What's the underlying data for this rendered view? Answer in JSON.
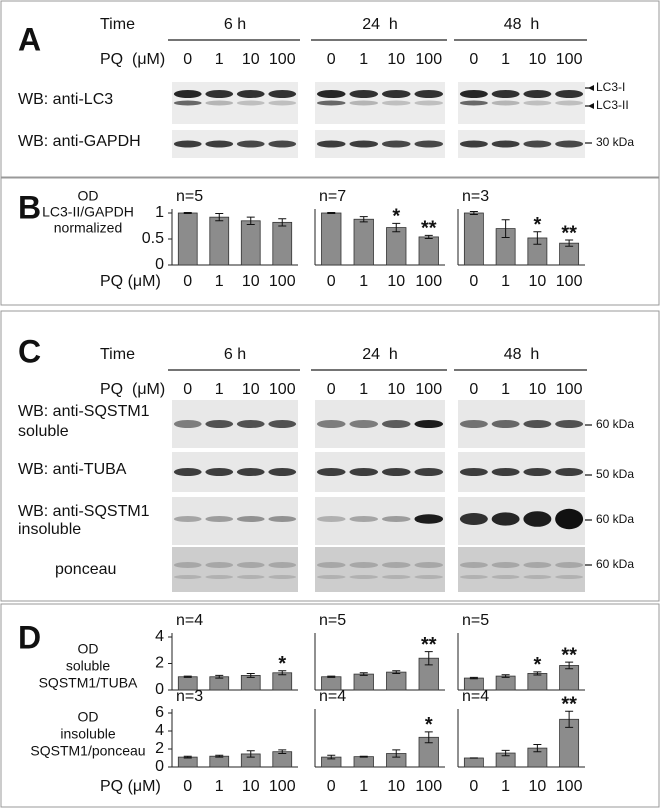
{
  "panel_a": {
    "letter": "A",
    "time_label": "Time",
    "times": [
      "6 h",
      "24  h",
      "48  h"
    ],
    "pq_label": "PQ  (μM)",
    "lanes": [
      [
        "0",
        "1",
        "10",
        "100"
      ],
      [
        "0",
        "1",
        "10",
        "100"
      ],
      [
        "0",
        "1",
        "10",
        "100"
      ]
    ],
    "rows": [
      {
        "label": [
          "WB: anti-LC3"
        ],
        "markers": [
          "LC3-I",
          "LC3-II"
        ]
      },
      {
        "label": [
          "WB: anti-GAPDH"
        ],
        "markers": [
          "30 kDa"
        ]
      }
    ]
  },
  "panel_b": {
    "letter": "B",
    "ylabel": [
      "OD",
      "LC3-II/GAPDH",
      "normalized"
    ],
    "pq_label": "PQ (μM)"
  },
  "panel_c": {
    "letter": "C",
    "time_label": "Time",
    "times": [
      "6 h",
      "24  h",
      "48  h"
    ],
    "pq_label": "PQ  (μM)",
    "lanes": [
      [
        "0",
        "1",
        "10",
        "100"
      ],
      [
        "0",
        "1",
        "10",
        "100"
      ],
      [
        "0",
        "1",
        "10",
        "100"
      ]
    ],
    "rows": [
      {
        "label": [
          "WB: anti-SQSTM1",
          "soluble"
        ],
        "markers": [
          "60 kDa"
        ]
      },
      {
        "label": [
          "WB: anti-TUBA"
        ],
        "markers": [
          "50 kDa"
        ]
      },
      {
        "label": [
          "WB: anti-SQSTM1",
          "insoluble"
        ],
        "markers": [
          "60 kDa"
        ]
      },
      {
        "label": [
          "ponceau"
        ],
        "markers": [
          "60 kDa"
        ]
      }
    ]
  },
  "panel_d": {
    "letter": "D",
    "row_labels": [
      [
        "OD",
        "soluble",
        "SQSTM1/TUBA"
      ],
      [
        "OD",
        "insoluble",
        "SQSTM1/ponceau"
      ]
    ],
    "pq_label": "PQ (μM)"
  },
  "chart_data": [
    {
      "type": "bar",
      "title": "n=5",
      "categories": [
        "0",
        "1",
        "10",
        "100"
      ],
      "values": [
        1,
        0.92,
        0.85,
        0.82
      ],
      "errors": [
        0.01,
        0.07,
        0.07,
        0.07
      ],
      "stars": [
        null,
        null,
        null,
        null
      ],
      "color": "#8c8c8c",
      "ylim": [
        0,
        1
      ],
      "yticks": [
        0,
        0.5,
        1
      ]
    },
    {
      "type": "bar",
      "title": "n=7",
      "categories": [
        "0",
        "1",
        "10",
        "100"
      ],
      "values": [
        1,
        0.88,
        0.72,
        0.54
      ],
      "errors": [
        0.01,
        0.05,
        0.08,
        0.03
      ],
      "stars": [
        null,
        null,
        "*",
        "**"
      ],
      "color": "#8c8c8c",
      "ylim": [
        0,
        1
      ]
    },
    {
      "type": "bar",
      "title": "n=3",
      "categories": [
        "0",
        "1",
        "10",
        "100"
      ],
      "values": [
        1,
        0.7,
        0.52,
        0.42
      ],
      "errors": [
        0.03,
        0.17,
        0.12,
        0.06
      ],
      "stars": [
        null,
        null,
        "*",
        "**"
      ],
      "color": "#8c8c8c",
      "ylim": [
        0,
        1
      ]
    },
    {
      "type": "bar",
      "title": "n=4",
      "values": [
        1.0,
        1.0,
        1.1,
        1.3
      ],
      "errors": [
        0.05,
        0.1,
        0.15,
        0.15
      ],
      "stars": [
        null,
        null,
        null,
        "*"
      ],
      "color": "#8c8c8c",
      "ylim": [
        0,
        4
      ],
      "yticks": [
        0,
        2,
        4
      ]
    },
    {
      "type": "bar",
      "title": "n=5",
      "values": [
        1.0,
        1.2,
        1.35,
        2.4
      ],
      "errors": [
        0.05,
        0.1,
        0.1,
        0.5
      ],
      "stars": [
        null,
        null,
        null,
        "**"
      ],
      "color": "#8c8c8c",
      "ylim": [
        0,
        4
      ]
    },
    {
      "type": "bar",
      "title": "n=5",
      "values": [
        0.9,
        1.05,
        1.25,
        1.85
      ],
      "errors": [
        0.05,
        0.1,
        0.12,
        0.25
      ],
      "stars": [
        null,
        null,
        "*",
        "**"
      ],
      "color": "#8c8c8c",
      "ylim": [
        0,
        4
      ]
    },
    {
      "type": "bar",
      "title": "n=3",
      "categories": [
        "0",
        "1",
        "10",
        "100"
      ],
      "values": [
        1.1,
        1.2,
        1.45,
        1.7
      ],
      "errors": [
        0.1,
        0.1,
        0.35,
        0.2
      ],
      "stars": [
        null,
        null,
        null,
        null
      ],
      "color": "#8c8c8c",
      "ylim": [
        0,
        6
      ],
      "yticks": [
        0,
        2,
        4,
        6
      ]
    },
    {
      "type": "bar",
      "title": "n=4",
      "categories": [
        "0",
        "1",
        "10",
        "100"
      ],
      "values": [
        1.1,
        1.15,
        1.5,
        3.3
      ],
      "errors": [
        0.2,
        0.05,
        0.4,
        0.6
      ],
      "stars": [
        null,
        null,
        null,
        "*"
      ],
      "color": "#8c8c8c",
      "ylim": [
        0,
        6
      ]
    },
    {
      "type": "bar",
      "title": "n=4",
      "categories": [
        "0",
        "1",
        "10",
        "100"
      ],
      "values": [
        1.0,
        1.55,
        2.1,
        5.3
      ],
      "errors": [
        0.02,
        0.3,
        0.4,
        0.9
      ],
      "stars": [
        null,
        null,
        null,
        "**"
      ],
      "color": "#8c8c8c",
      "ylim": [
        0,
        6
      ]
    }
  ]
}
